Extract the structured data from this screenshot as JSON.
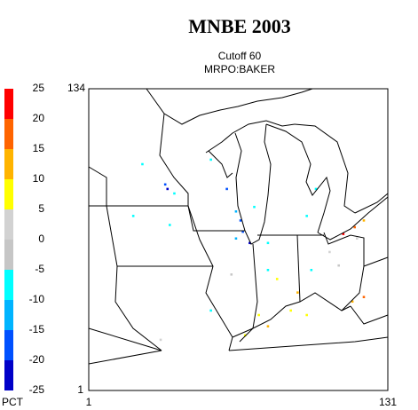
{
  "map": {
    "title": "MNBE 2003",
    "subtitle": "Cutoff 60",
    "source": "MRPO:BAKER",
    "xlim": [
      1,
      131
    ],
    "ylim": [
      1,
      134
    ],
    "colorbar": {
      "unit": "PCT",
      "levels": [
        25,
        20,
        15,
        10,
        5,
        0,
        -5,
        -10,
        -15,
        -20,
        -25
      ],
      "colors": [
        "#ff0000",
        "#ff6400",
        "#ffb400",
        "#ffff00",
        "#d2d2d2",
        "#c6c6c6",
        "#00ffff",
        "#00b4ff",
        "#0050ff",
        "#0000c8"
      ]
    },
    "cells": [
      {
        "col": 112,
        "row": 70,
        "value": 22
      },
      {
        "col": 117,
        "row": 73,
        "value": 17
      },
      {
        "col": 121,
        "row": 42,
        "value": 18
      },
      {
        "col": 71,
        "row": 66,
        "value": -22
      },
      {
        "col": 35,
        "row": 90,
        "value": -22
      },
      {
        "col": 67,
        "row": 76,
        "value": -17
      },
      {
        "col": 61,
        "row": 90,
        "value": -17
      },
      {
        "col": 34,
        "row": 92,
        "value": -17
      },
      {
        "col": 68,
        "row": 71,
        "value": -18
      },
      {
        "col": 65,
        "row": 80,
        "value": -12
      },
      {
        "col": 65,
        "row": 68,
        "value": -13
      },
      {
        "col": 24,
        "row": 101,
        "value": -8
      },
      {
        "col": 54,
        "row": 103,
        "value": -8
      },
      {
        "col": 100,
        "row": 90,
        "value": -8
      },
      {
        "col": 96,
        "row": 78,
        "value": -8
      },
      {
        "col": 36,
        "row": 74,
        "value": -7
      },
      {
        "col": 20,
        "row": 78,
        "value": -7
      },
      {
        "col": 54,
        "row": 36,
        "value": -8
      },
      {
        "col": 73,
        "row": 82,
        "value": -9
      },
      {
        "col": 38,
        "row": 88,
        "value": -9
      },
      {
        "col": 79,
        "row": 54,
        "value": -6
      },
      {
        "col": 98,
        "row": 54,
        "value": -8
      },
      {
        "col": 79,
        "row": 66,
        "value": -9
      },
      {
        "col": 83,
        "row": 50,
        "value": 7
      },
      {
        "col": 89,
        "row": 36,
        "value": 8
      },
      {
        "col": 75,
        "row": 34,
        "value": 7
      },
      {
        "col": 96,
        "row": 34,
        "value": 7
      },
      {
        "col": 69,
        "row": 25,
        "value": 6
      },
      {
        "col": 92,
        "row": 44,
        "value": 12
      },
      {
        "col": 116,
        "row": 40,
        "value": 12
      },
      {
        "col": 79,
        "row": 29,
        "value": 13
      },
      {
        "col": 121,
        "row": 76,
        "value": 11
      },
      {
        "col": 106,
        "row": 62,
        "value": 2
      },
      {
        "col": 110,
        "row": 56,
        "value": -2
      },
      {
        "col": 32,
        "row": 23,
        "value": 3
      },
      {
        "col": 63,
        "row": 52,
        "value": -3
      },
      {
        "col": 118,
        "row": 68,
        "value": 3
      }
    ]
  }
}
